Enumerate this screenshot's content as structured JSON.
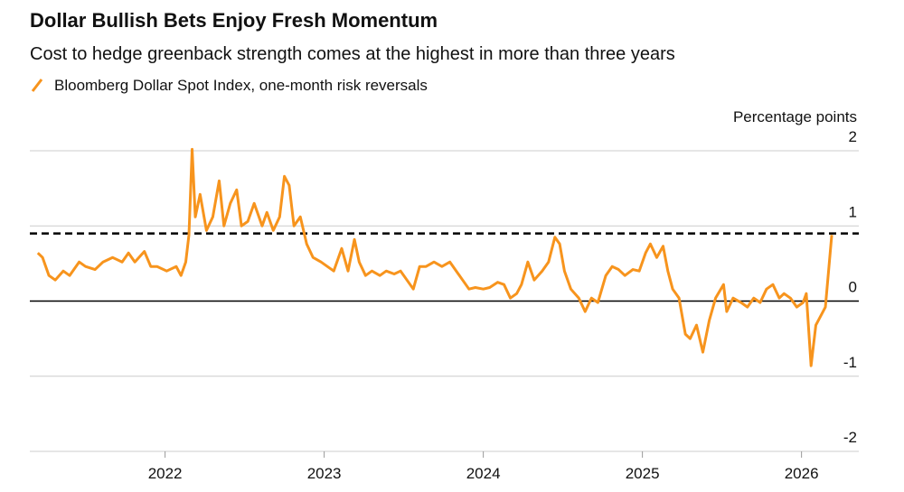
{
  "chart_data": {
    "type": "line",
    "title": "Dollar Bullish Bets Enjoy Fresh Momentum",
    "subtitle": "Cost to hedge greenback strength comes at the highest in more than three years",
    "y_axis_label": "Percentage points",
    "x": [
      2021.2,
      2021.23,
      2021.27,
      2021.31,
      2021.36,
      2021.4,
      2021.46,
      2021.5,
      2021.56,
      2021.61,
      2021.67,
      2021.73,
      2021.77,
      2021.81,
      2021.87,
      2021.91,
      2021.95,
      2022.01,
      2022.07,
      2022.1,
      2022.13,
      2022.15,
      2022.17,
      2022.19,
      2022.22,
      2022.26,
      2022.3,
      2022.34,
      2022.37,
      2022.41,
      2022.45,
      2022.48,
      2022.52,
      2022.56,
      2022.61,
      2022.64,
      2022.68,
      2022.72,
      2022.75,
      2022.78,
      2022.81,
      2022.85,
      2022.89,
      2022.93,
      2022.98,
      2023.02,
      2023.06,
      2023.11,
      2023.15,
      2023.19,
      2023.22,
      2023.26,
      2023.3,
      2023.35,
      2023.39,
      2023.44,
      2023.48,
      2023.52,
      2023.56,
      2023.6,
      2023.64,
      2023.69,
      2023.74,
      2023.79,
      2023.83,
      2023.87,
      2023.91,
      2023.95,
      2024.0,
      2024.04,
      2024.09,
      2024.13,
      2024.17,
      2024.21,
      2024.24,
      2024.28,
      2024.32,
      2024.37,
      2024.41,
      2024.45,
      2024.48,
      2024.51,
      2024.55,
      2024.6,
      2024.64,
      2024.68,
      2024.72,
      2024.77,
      2024.81,
      2024.85,
      2024.89,
      2024.94,
      2024.98,
      2025.02,
      2025.05,
      2025.09,
      2025.13,
      2025.16,
      2025.19,
      2025.23,
      2025.27,
      2025.3,
      2025.34,
      2025.38,
      2025.42,
      2025.46,
      2025.51,
      2025.53,
      2025.57,
      2025.62,
      2025.66,
      2025.7,
      2025.74,
      2025.78,
      2025.82,
      2025.86,
      2025.89,
      2025.93,
      2025.97,
      2026.01,
      2026.03,
      2026.06,
      2026.09,
      2026.12,
      2026.15,
      2026.18,
      2026.19
    ],
    "series": [
      {
        "name": "Bloomberg Dollar Spot Index, one-month risk reversals",
        "color": "#f7941d",
        "values": [
          0.64,
          0.58,
          0.34,
          0.28,
          0.4,
          0.34,
          0.52,
          0.46,
          0.42,
          0.52,
          0.58,
          0.52,
          0.64,
          0.52,
          0.66,
          0.46,
          0.46,
          0.4,
          0.46,
          0.34,
          0.52,
          0.88,
          2.02,
          1.12,
          1.42,
          0.94,
          1.12,
          1.6,
          1.0,
          1.3,
          1.48,
          1.0,
          1.06,
          1.3,
          1.0,
          1.18,
          0.94,
          1.12,
          1.66,
          1.54,
          1.0,
          1.12,
          0.76,
          0.58,
          0.52,
          0.46,
          0.4,
          0.7,
          0.4,
          0.82,
          0.52,
          0.34,
          0.4,
          0.34,
          0.4,
          0.36,
          0.4,
          0.28,
          0.16,
          0.46,
          0.46,
          0.52,
          0.46,
          0.52,
          0.4,
          0.28,
          0.16,
          0.18,
          0.16,
          0.18,
          0.25,
          0.22,
          0.04,
          0.1,
          0.22,
          0.52,
          0.28,
          0.4,
          0.52,
          0.85,
          0.76,
          0.4,
          0.16,
          0.04,
          -0.14,
          0.04,
          -0.02,
          0.34,
          0.46,
          0.42,
          0.34,
          0.42,
          0.4,
          0.64,
          0.76,
          0.58,
          0.73,
          0.4,
          0.16,
          0.04,
          -0.44,
          -0.5,
          -0.32,
          -0.68,
          -0.26,
          0.04,
          0.22,
          -0.14,
          0.04,
          -0.02,
          -0.08,
          0.04,
          -0.02,
          0.16,
          0.22,
          0.04,
          0.1,
          0.04,
          -0.08,
          -0.02,
          0.1,
          -0.86,
          -0.32,
          -0.2,
          -0.08,
          0.64,
          0.88
        ]
      }
    ],
    "reference_line": 0.9,
    "xlim": [
      2021.15,
      2026.36
    ],
    "xticks": [
      2022,
      2023,
      2024,
      2025,
      2026
    ],
    "ylim": [
      -2,
      2
    ],
    "yticks": [
      -2,
      -1,
      0,
      1,
      2
    ],
    "grid": true
  }
}
